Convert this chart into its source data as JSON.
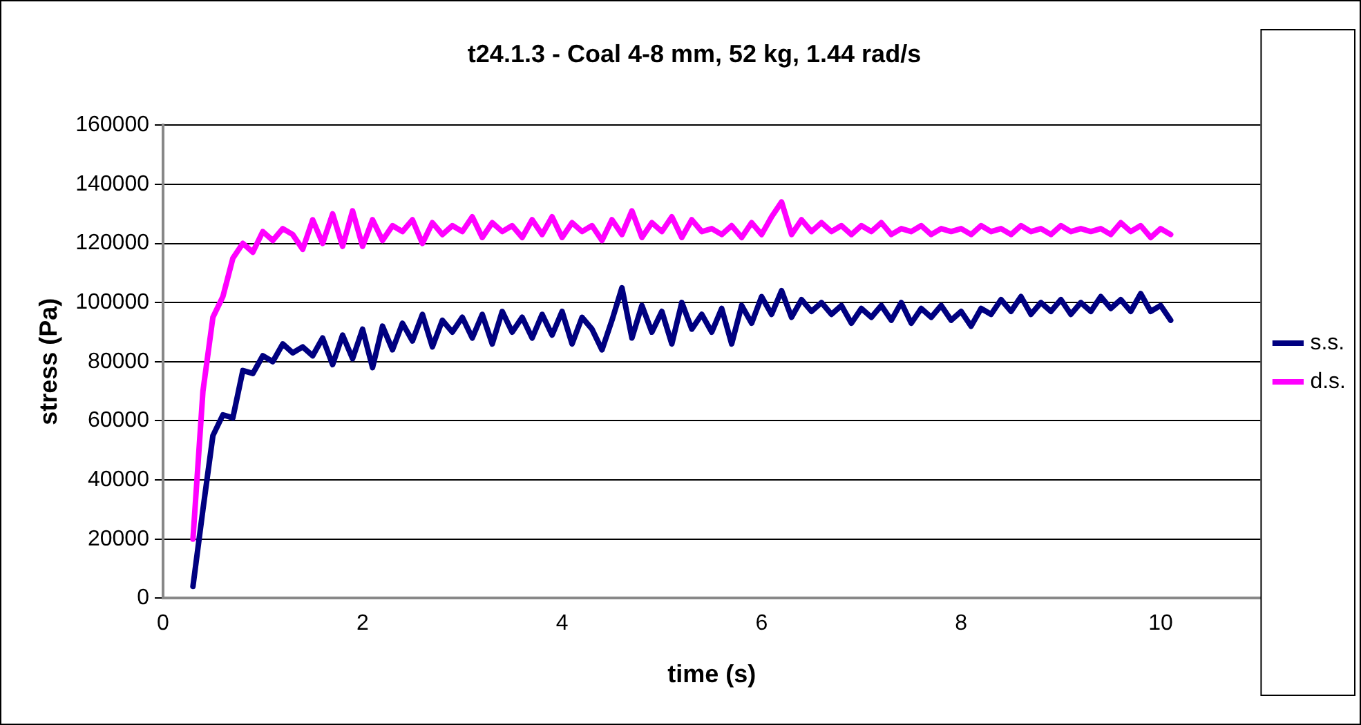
{
  "chart_data": {
    "type": "line",
    "title": "t24.1.3 - Coal 4-8 mm, 52 kg, 1.44 rad/s",
    "xlabel": "time (s)",
    "ylabel": "stress (Pa)",
    "x": [
      0.3,
      0.4,
      0.5,
      0.6,
      0.7,
      0.8,
      0.9,
      1.0,
      1.1,
      1.2,
      1.3,
      1.4,
      1.5,
      1.6,
      1.7,
      1.8,
      1.9,
      2.0,
      2.1,
      2.2,
      2.3,
      2.4,
      2.5,
      2.6,
      2.7,
      2.8,
      2.9,
      3.0,
      3.1,
      3.2,
      3.3,
      3.4,
      3.5,
      3.6,
      3.7,
      3.8,
      3.9,
      4.0,
      4.1,
      4.2,
      4.3,
      4.4,
      4.5,
      4.6,
      4.7,
      4.8,
      4.9,
      5.0,
      5.1,
      5.2,
      5.3,
      5.4,
      5.5,
      5.6,
      5.7,
      5.8,
      5.9,
      6.0,
      6.1,
      6.2,
      6.3,
      6.4,
      6.5,
      6.6,
      6.7,
      6.8,
      6.9,
      7.0,
      7.1,
      7.2,
      7.3,
      7.4,
      7.5,
      7.6,
      7.7,
      7.8,
      7.9,
      8.0,
      8.1,
      8.2,
      8.3,
      8.4,
      8.5,
      8.6,
      8.7,
      8.8,
      8.9,
      9.0,
      9.1,
      9.2,
      9.3,
      9.4,
      9.5,
      9.6,
      9.7,
      9.8,
      9.9,
      10.0,
      10.1
    ],
    "series": [
      {
        "name": "s.s.",
        "color": "#000080",
        "values": [
          4000,
          30000,
          55000,
          62000,
          61000,
          77000,
          76000,
          82000,
          80000,
          86000,
          83000,
          85000,
          82000,
          88000,
          79000,
          89000,
          81000,
          91000,
          78000,
          92000,
          84000,
          93000,
          87000,
          96000,
          85000,
          94000,
          90000,
          95000,
          88000,
          96000,
          86000,
          97000,
          90000,
          95000,
          88000,
          96000,
          89000,
          97000,
          86000,
          95000,
          91000,
          84000,
          94000,
          105000,
          88000,
          99000,
          90000,
          97000,
          86000,
          100000,
          91000,
          96000,
          90000,
          98000,
          86000,
          99000,
          93000,
          102000,
          96000,
          104000,
          95000,
          101000,
          97000,
          100000,
          96000,
          99000,
          93000,
          98000,
          95000,
          99000,
          94000,
          100000,
          93000,
          98000,
          95000,
          99000,
          94000,
          97000,
          92000,
          98000,
          96000,
          101000,
          97000,
          102000,
          96000,
          100000,
          97000,
          101000,
          96000,
          100000,
          97000,
          102000,
          98000,
          101000,
          97000,
          103000,
          97000,
          99000,
          94000
        ]
      },
      {
        "name": "d.s.",
        "color": "#ff00ff",
        "values": [
          20000,
          70000,
          95000,
          102000,
          115000,
          120000,
          117000,
          124000,
          121000,
          125000,
          123000,
          118000,
          128000,
          120000,
          130000,
          119000,
          131000,
          119000,
          128000,
          121000,
          126000,
          124000,
          128000,
          120000,
          127000,
          123000,
          126000,
          124000,
          129000,
          122000,
          127000,
          124000,
          126000,
          122000,
          128000,
          123000,
          129000,
          122000,
          127000,
          124000,
          126000,
          121000,
          128000,
          123000,
          131000,
          122000,
          127000,
          124000,
          129000,
          122000,
          128000,
          124000,
          125000,
          123000,
          126000,
          122000,
          127000,
          123000,
          129000,
          134000,
          123000,
          128000,
          124000,
          127000,
          124000,
          126000,
          123000,
          126000,
          124000,
          127000,
          123000,
          125000,
          124000,
          126000,
          123000,
          125000,
          124000,
          125000,
          123000,
          126000,
          124000,
          125000,
          123000,
          126000,
          124000,
          125000,
          123000,
          126000,
          124000,
          125000,
          124000,
          125000,
          123000,
          127000,
          124000,
          126000,
          122000,
          125000,
          123000
        ]
      }
    ],
    "xlim": [
      0,
      11
    ],
    "xticks": [
      0,
      2,
      4,
      6,
      8,
      10
    ],
    "ylim": [
      0,
      160000
    ],
    "yticks": [
      0,
      20000,
      40000,
      60000,
      80000,
      100000,
      120000,
      140000,
      160000
    ],
    "grid": "y",
    "legend": "right",
    "marker": "none",
    "line_style": "solid"
  }
}
